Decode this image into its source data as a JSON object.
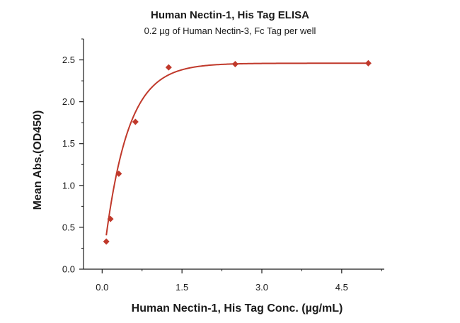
{
  "chart_data": {
    "type": "scatter",
    "title": "Human Nectin-1, His Tag ELISA",
    "subtitle": "0.2 µg of Human Nectin-3, Fc Tag per well",
    "xlabel": "Human Nectin-1, His Tag Conc. (µg/mL)",
    "ylabel": "Mean Abs.(OD450)",
    "xlim": [
      -0.35,
      5.3
    ],
    "ylim": [
      0,
      2.75
    ],
    "xticks": [
      0.0,
      1.5,
      3.0,
      4.5
    ],
    "xtick_labels": [
      "0.0",
      "1.5",
      "3.0",
      "4.5"
    ],
    "yticks": [
      0.0,
      0.5,
      1.0,
      1.5,
      2.0,
      2.5
    ],
    "ytick_labels": [
      "0.0",
      "0.5",
      "1.0",
      "1.5",
      "2.0",
      "2.5"
    ],
    "grid": false,
    "legend": "none",
    "color": "#c0392b",
    "series": [
      {
        "x": [
          0.078,
          0.156,
          0.3125,
          0.625,
          1.25,
          2.5,
          5.0
        ],
        "y": [
          0.33,
          0.6,
          1.14,
          1.76,
          2.41,
          2.45,
          2.46
        ],
        "fit": {
          "top": 2.46,
          "k": 2.3
        }
      }
    ]
  }
}
